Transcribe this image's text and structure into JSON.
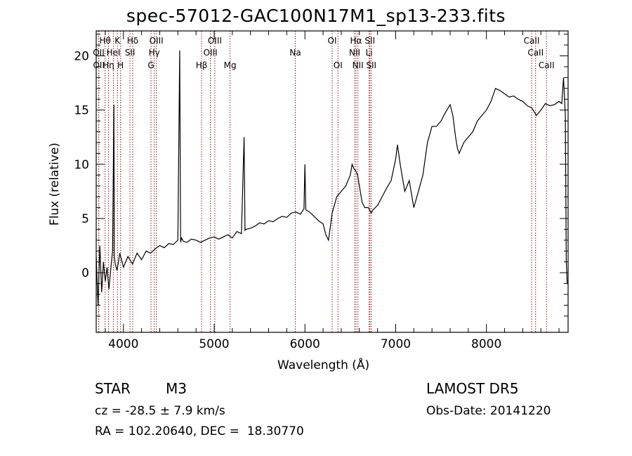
{
  "chart_data": {
    "type": "line",
    "title": "spec-57012-GAC100N17M1_sp13-233.fits",
    "xlabel": "Wavelength (Å)",
    "ylabel": "Flux (relative)",
    "xlim": [
      3700,
      8900
    ],
    "ylim": [
      -5.5,
      22.3
    ],
    "x_ticks": [
      4000,
      5000,
      6000,
      7000,
      8000
    ],
    "x_tick_labels": [
      "4000",
      "5000",
      "6000",
      "7000",
      "8000"
    ],
    "y_ticks": [
      0,
      5,
      10,
      15,
      20
    ],
    "y_tick_labels": [
      "0",
      "5",
      "10",
      "15",
      "20"
    ],
    "grid": false,
    "line_color": "#000000",
    "marker_color": "#8b1a1a",
    "series": [
      {
        "values_x": [
          3700,
          3720,
          3740,
          3760,
          3780,
          3800,
          3820,
          3840,
          3860,
          3880,
          3895,
          3900,
          3910,
          3930,
          3960,
          4000,
          4050,
          4100,
          4150,
          4200,
          4250,
          4300,
          4350,
          4400,
          4450,
          4500,
          4550,
          4600,
          4620,
          4630,
          4640,
          4660,
          4700,
          4750,
          4800,
          4850,
          4900,
          4950,
          5000,
          5050,
          5100,
          5150,
          5200,
          5250,
          5300,
          5330,
          5340,
          5350,
          5400,
          5450,
          5500,
          5550,
          5600,
          5650,
          5700,
          5750,
          5800,
          5850,
          5900,
          5950,
          5990,
          6000,
          6010,
          6050,
          6100,
          6150,
          6200,
          6230,
          6260,
          6300,
          6350,
          6400,
          6450,
          6500,
          6520,
          6540,
          6560,
          6580,
          6600,
          6630,
          6660,
          6700,
          6730,
          6750,
          6800,
          6850,
          6900,
          6950,
          7000,
          7020,
          7050,
          7100,
          7150,
          7200,
          7250,
          7300,
          7350,
          7400,
          7450,
          7500,
          7550,
          7600,
          7630,
          7660,
          7680,
          7700,
          7750,
          7800,
          7850,
          7900,
          7950,
          8000,
          8050,
          8100,
          8150,
          8200,
          8250,
          8300,
          8350,
          8400,
          8450,
          8500,
          8550,
          8600,
          8650,
          8700,
          8750,
          8800,
          8830,
          8850,
          8870,
          8880,
          8890
        ],
        "values_y": [
          1.5,
          -3.0,
          2.5,
          -1.8,
          1.0,
          -0.8,
          0.5,
          -1.5,
          0.3,
          2.0,
          15.5,
          1.5,
          0.8,
          0.2,
          1.8,
          0.5,
          1.5,
          0.8,
          1.8,
          1.2,
          2.0,
          1.8,
          2.2,
          2.5,
          2.3,
          2.7,
          2.6,
          3.0,
          20.5,
          2.8,
          3.2,
          2.9,
          2.8,
          3.1,
          3.0,
          2.8,
          3.0,
          3.2,
          3.3,
          3.1,
          3.3,
          3.5,
          3.2,
          3.8,
          3.6,
          12.5,
          3.9,
          4.0,
          4.1,
          4.3,
          4.6,
          4.5,
          4.8,
          4.7,
          5.0,
          5.2,
          5.1,
          5.5,
          5.6,
          5.4,
          5.9,
          10.0,
          5.8,
          5.6,
          5.2,
          4.8,
          4.5,
          3.5,
          3.0,
          5.5,
          7.0,
          7.5,
          8.0,
          9.0,
          10.0,
          9.6,
          9.4,
          9.0,
          8.0,
          6.5,
          6.0,
          6.0,
          5.5,
          5.8,
          6.2,
          7.0,
          7.8,
          8.5,
          10.5,
          11.8,
          10.0,
          7.5,
          8.5,
          6.0,
          7.5,
          9.0,
          12.0,
          13.5,
          13.5,
          14.0,
          14.8,
          15.5,
          14.5,
          12.5,
          11.5,
          11.0,
          12.0,
          12.5,
          13.0,
          14.0,
          14.5,
          15.0,
          15.8,
          17.0,
          16.8,
          16.5,
          16.2,
          16.3,
          16.0,
          15.8,
          15.4,
          15.2,
          14.5,
          15.0,
          15.6,
          15.4,
          15.5,
          15.8,
          15.6,
          18.0,
          14.5,
          1.0,
          -1.0
        ]
      }
    ],
    "line_markers": [
      {
        "label": "Hθ",
        "wavelength": 3798,
        "row": 1
      },
      {
        "label": "OII",
        "wavelength": 3727,
        "row": 2
      },
      {
        "label": "OII",
        "wavelength": 3729,
        "row": 3
      },
      {
        "label": "Hη",
        "wavelength": 3835,
        "row": 3
      },
      {
        "label": "K",
        "wavelength": 3934,
        "row": 1
      },
      {
        "label": "HeI",
        "wavelength": 3889,
        "row": 2
      },
      {
        "label": "H",
        "wavelength": 3968,
        "row": 3
      },
      {
        "label": "Hδ",
        "wavelength": 4102,
        "row": 1
      },
      {
        "label": "SII",
        "wavelength": 4072,
        "row": 2
      },
      {
        "label": "OIII",
        "wavelength": 4363,
        "row": 1
      },
      {
        "label": "Hγ",
        "wavelength": 4340,
        "row": 2
      },
      {
        "label": "G",
        "wavelength": 4304,
        "row": 3
      },
      {
        "label": "OIII",
        "wavelength": 5007,
        "row": 1
      },
      {
        "label": "OIII",
        "wavelength": 4959,
        "row": 2
      },
      {
        "label": "Hβ",
        "wavelength": 4861,
        "row": 3
      },
      {
        "label": "Mg",
        "wavelength": 5175,
        "row": 3
      },
      {
        "label": "Na",
        "wavelength": 5894,
        "row": 2
      },
      {
        "label": "OI",
        "wavelength": 6300,
        "row": 1
      },
      {
        "label": "OI",
        "wavelength": 6364,
        "row": 3
      },
      {
        "label": "Hα",
        "wavelength": 6563,
        "row": 1
      },
      {
        "label": "SII",
        "wavelength": 6716,
        "row": 1
      },
      {
        "label": "NII",
        "wavelength": 6548,
        "row": 2
      },
      {
        "label": "Li",
        "wavelength": 6707,
        "row": 2
      },
      {
        "label": "NII",
        "wavelength": 6584,
        "row": 3
      },
      {
        "label": "SII",
        "wavelength": 6731,
        "row": 3
      },
      {
        "label": "CaII",
        "wavelength": 8498,
        "row": 1
      },
      {
        "label": "CaII",
        "wavelength": 8542,
        "row": 2
      },
      {
        "label": "CaII",
        "wavelength": 8662,
        "row": 3
      }
    ]
  },
  "info": {
    "class": "STAR",
    "subclass": "M3",
    "survey": "LAMOST DR5",
    "cz_text": "cz = -28.5 ± 7.9 km/s",
    "obs_date": "Obs-Date: 20141220",
    "coords": "RA = 102.20640, DEC =  18.30770"
  }
}
